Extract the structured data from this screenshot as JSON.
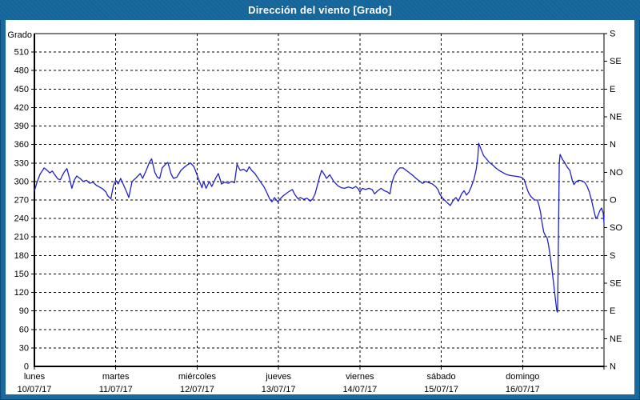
{
  "window": {
    "title": "Dirección del viento [Grado]"
  },
  "theme": {
    "frame_blue": "#186a9e",
    "frame_edge": "#0d4a73",
    "line_color": "#2121c8",
    "grid_color": "#000000",
    "plot_bg": "#ffffff",
    "text_color": "#000000"
  },
  "chart_data": {
    "type": "line",
    "title": "Dirección del viento [Grado]",
    "ylabel": "Grado",
    "grid": "dashed",
    "y_axis": {
      "min": 0,
      "max": 540,
      "tick_step": 30,
      "labeled_min": 0,
      "labeled_max": 510
    },
    "right_axis": {
      "tick_step": 45,
      "labels_top_to_bottom": [
        "S",
        "SE",
        "E",
        "NE",
        "N",
        "NO",
        "O",
        "SO",
        "S",
        "SE",
        "E",
        "NE",
        "N"
      ]
    },
    "x_axis": {
      "unit": "days",
      "range": [
        0,
        7
      ],
      "days": [
        {
          "name": "lunes",
          "date": "10/07/17"
        },
        {
          "name": "martes",
          "date": "11/07/17"
        },
        {
          "name": "miércoles",
          "date": "12/07/17"
        },
        {
          "name": "jueves",
          "date": "13/07/17"
        },
        {
          "name": "viernes",
          "date": "14/07/17"
        },
        {
          "name": "sábado",
          "date": "15/07/17"
        },
        {
          "name": "domingo",
          "date": "16/07/17"
        }
      ]
    },
    "series": [
      {
        "name": "Dirección del viento",
        "points": [
          [
            0,
            285
          ],
          [
            0.03,
            298
          ],
          [
            0.07,
            312
          ],
          [
            0.1,
            318
          ],
          [
            0.12,
            322
          ],
          [
            0.15,
            319
          ],
          [
            0.19,
            314
          ],
          [
            0.22,
            317
          ],
          [
            0.25,
            311
          ],
          [
            0.29,
            304
          ],
          [
            0.32,
            303
          ],
          [
            0.34,
            309
          ],
          [
            0.37,
            316
          ],
          [
            0.4,
            321
          ],
          [
            0.43,
            306
          ],
          [
            0.46,
            289
          ],
          [
            0.49,
            302
          ],
          [
            0.52,
            309
          ],
          [
            0.56,
            305
          ],
          [
            0.6,
            300
          ],
          [
            0.64,
            302
          ],
          [
            0.68,
            297
          ],
          [
            0.72,
            299
          ],
          [
            0.76,
            294
          ],
          [
            0.8,
            291
          ],
          [
            0.84,
            288
          ],
          [
            0.88,
            283
          ],
          [
            0.9,
            277
          ],
          [
            0.94,
            272
          ],
          [
            0.97,
            293
          ],
          [
            1,
            302
          ],
          [
            1.03,
            296
          ],
          [
            1.06,
            305
          ],
          [
            1.1,
            293
          ],
          [
            1.14,
            281
          ],
          [
            1.16,
            274
          ],
          [
            1.2,
            300
          ],
          [
            1.25,
            306
          ],
          [
            1.3,
            313
          ],
          [
            1.33,
            305
          ],
          [
            1.38,
            320
          ],
          [
            1.41,
            330
          ],
          [
            1.44,
            337
          ],
          [
            1.48,
            315
          ],
          [
            1.51,
            307
          ],
          [
            1.54,
            305
          ],
          [
            1.57,
            322
          ],
          [
            1.61,
            328
          ],
          [
            1.64,
            331
          ],
          [
            1.68,
            312
          ],
          [
            1.71,
            305
          ],
          [
            1.75,
            307
          ],
          [
            1.8,
            318
          ],
          [
            1.84,
            323
          ],
          [
            1.88,
            327
          ],
          [
            1.92,
            330
          ],
          [
            1.96,
            324
          ],
          [
            1.99,
            314
          ],
          [
            2.02,
            303
          ],
          [
            2.06,
            290
          ],
          [
            2.08,
            300
          ],
          [
            2.11,
            289
          ],
          [
            2.15,
            300
          ],
          [
            2.18,
            292
          ],
          [
            2.23,
            306
          ],
          [
            2.26,
            313
          ],
          [
            2.3,
            296
          ],
          [
            2.34,
            299
          ],
          [
            2.38,
            297
          ],
          [
            2.42,
            300
          ],
          [
            2.46,
            298
          ],
          [
            2.49,
            328
          ],
          [
            2.53,
            318
          ],
          [
            2.57,
            320
          ],
          [
            2.61,
            316
          ],
          [
            2.64,
            324
          ],
          [
            2.67,
            318
          ],
          [
            2.71,
            313
          ],
          [
            2.75,
            305
          ],
          [
            2.79,
            297
          ],
          [
            2.82,
            292
          ],
          [
            2.86,
            281
          ],
          [
            2.89,
            272
          ],
          [
            2.92,
            267
          ],
          [
            2.95,
            274
          ],
          [
            2.99,
            267
          ],
          [
            3.02,
            272
          ],
          [
            3.06,
            277
          ],
          [
            3.12,
            283
          ],
          [
            3.17,
            287
          ],
          [
            3.2,
            279
          ],
          [
            3.24,
            272
          ],
          [
            3.27,
            274
          ],
          [
            3.31,
            271
          ],
          [
            3.35,
            273
          ],
          [
            3.39,
            268
          ],
          [
            3.42,
            272
          ],
          [
            3.45,
            280
          ],
          [
            3.48,
            295
          ],
          [
            3.51,
            310
          ],
          [
            3.53,
            318
          ],
          [
            3.56,
            312
          ],
          [
            3.59,
            305
          ],
          [
            3.63,
            311
          ],
          [
            3.68,
            300
          ],
          [
            3.73,
            293
          ],
          [
            3.77,
            290
          ],
          [
            3.81,
            289
          ],
          [
            3.86,
            291
          ],
          [
            3.91,
            289
          ],
          [
            3.95,
            292
          ],
          [
            3.98,
            288
          ],
          [
            4,
            283
          ],
          [
            4.03,
            289
          ],
          [
            4.07,
            287
          ],
          [
            4.11,
            289
          ],
          [
            4.15,
            287
          ],
          [
            4.18,
            280
          ],
          [
            4.22,
            285
          ],
          [
            4.26,
            289
          ],
          [
            4.3,
            285
          ],
          [
            4.34,
            283
          ],
          [
            4.37,
            280
          ],
          [
            4.39,
            296
          ],
          [
            4.42,
            309
          ],
          [
            4.46,
            318
          ],
          [
            4.49,
            322
          ],
          [
            4.53,
            322
          ],
          [
            4.57,
            318
          ],
          [
            4.61,
            314
          ],
          [
            4.65,
            310
          ],
          [
            4.69,
            305
          ],
          [
            4.73,
            301
          ],
          [
            4.77,
            297
          ],
          [
            4.81,
            300
          ],
          [
            4.85,
            298
          ],
          [
            4.89,
            296
          ],
          [
            4.93,
            292
          ],
          [
            4.96,
            287
          ],
          [
            4.98,
            280
          ],
          [
            5.01,
            274
          ],
          [
            5.04,
            270
          ],
          [
            5.07,
            266
          ],
          [
            5.11,
            261
          ],
          [
            5.15,
            270
          ],
          [
            5.18,
            274
          ],
          [
            5.21,
            268
          ],
          [
            5.25,
            280
          ],
          [
            5.28,
            285
          ],
          [
            5.31,
            278
          ],
          [
            5.34,
            283
          ],
          [
            5.37,
            292
          ],
          [
            5.4,
            303
          ],
          [
            5.43,
            320
          ],
          [
            5.45,
            340
          ],
          [
            5.46,
            362
          ],
          [
            5.49,
            352
          ],
          [
            5.52,
            342
          ],
          [
            5.56,
            336
          ],
          [
            5.59,
            331
          ],
          [
            5.63,
            327
          ],
          [
            5.67,
            322
          ],
          [
            5.71,
            318
          ],
          [
            5.75,
            315
          ],
          [
            5.79,
            312
          ],
          [
            5.84,
            310
          ],
          [
            5.89,
            309
          ],
          [
            5.94,
            308
          ],
          [
            5.98,
            307
          ],
          [
            6.02,
            303
          ],
          [
            6.04,
            294
          ],
          [
            6.06,
            286
          ],
          [
            6.08,
            280
          ],
          [
            6.1,
            276
          ],
          [
            6.13,
            272
          ],
          [
            6.15,
            270
          ],
          [
            6.18,
            270
          ],
          [
            6.2,
            262
          ],
          [
            6.22,
            250
          ],
          [
            6.24,
            232
          ],
          [
            6.26,
            218
          ],
          [
            6.28,
            212
          ],
          [
            6.3,
            209
          ],
          [
            6.32,
            196
          ],
          [
            6.34,
            178
          ],
          [
            6.36,
            158
          ],
          [
            6.38,
            136
          ],
          [
            6.4,
            112
          ],
          [
            6.42,
            90
          ],
          [
            6.43,
            88
          ],
          [
            6.45,
            330
          ],
          [
            6.46,
            344
          ],
          [
            6.49,
            336
          ],
          [
            6.52,
            330
          ],
          [
            6.55,
            323
          ],
          [
            6.58,
            318
          ],
          [
            6.61,
            302
          ],
          [
            6.63,
            295
          ],
          [
            6.66,
            300
          ],
          [
            6.69,
            302
          ],
          [
            6.73,
            301
          ],
          [
            6.76,
            299
          ],
          [
            6.79,
            293
          ],
          [
            6.82,
            283
          ],
          [
            6.85,
            268
          ],
          [
            6.87,
            256
          ],
          [
            6.9,
            240
          ],
          [
            6.92,
            243
          ],
          [
            6.95,
            253
          ],
          [
            6.97,
            257
          ],
          [
            6.99,
            249
          ],
          [
            7,
            233
          ]
        ]
      }
    ]
  }
}
